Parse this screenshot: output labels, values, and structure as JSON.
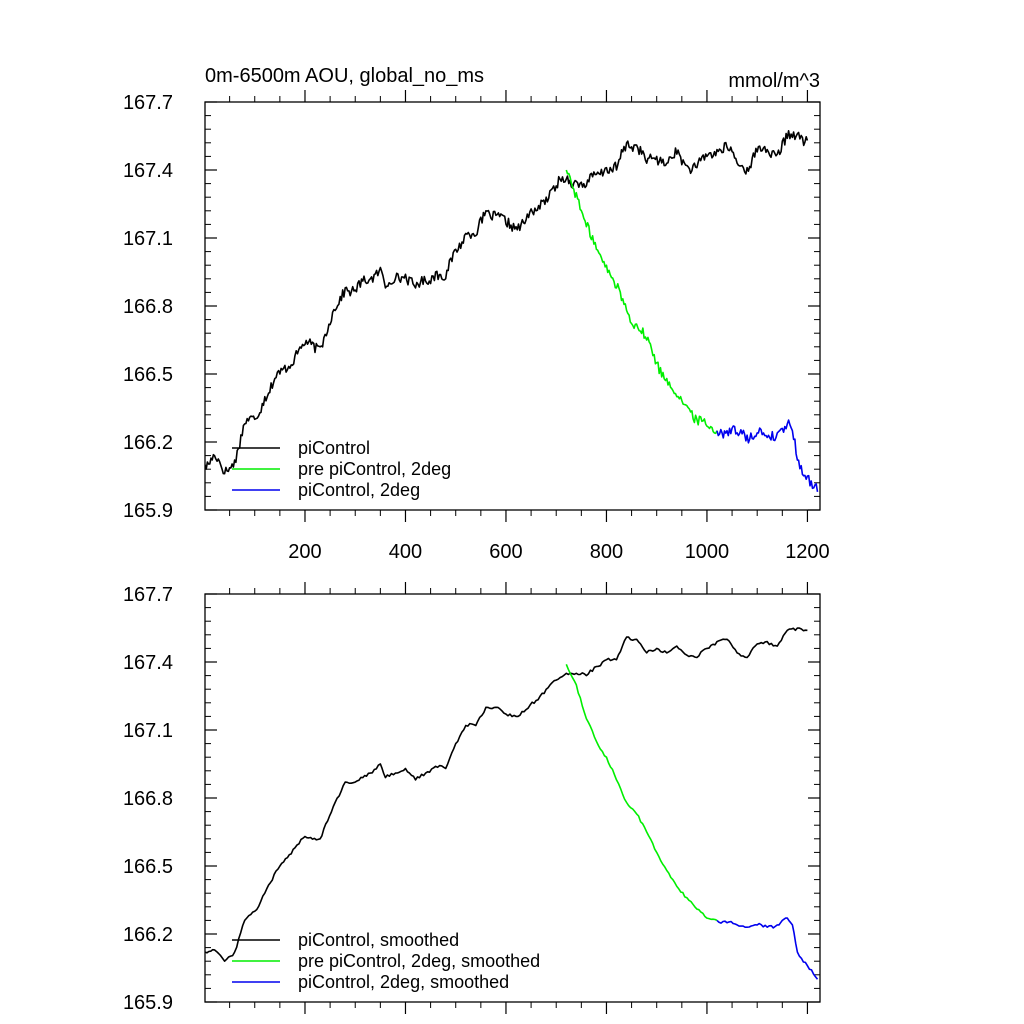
{
  "chart_data": [
    {
      "type": "line",
      "title": "0m-6500m AOU, global_no_ms",
      "units": "mmol/m^3",
      "xlim": [
        1,
        1225
      ],
      "ylim": [
        165.9,
        167.7
      ],
      "xticks": [
        200,
        400,
        600,
        800,
        1000,
        1200
      ],
      "xtick_labels": [
        "200",
        "400",
        "600",
        "800",
        "1000",
        "1200"
      ],
      "yticks": [
        165.9,
        166.2,
        166.5,
        166.8,
        167.1,
        167.4,
        167.7
      ],
      "ytick_labels": [
        "165.9",
        "166.2",
        "166.5",
        "166.8",
        "167.1",
        "167.4",
        "167.7"
      ],
      "legend_position": "bottom-left",
      "series": [
        {
          "name": "piControl",
          "color": "#000000",
          "style": "noisy",
          "x": [
            1,
            20,
            40,
            60,
            80,
            100,
            120,
            150,
            180,
            200,
            230,
            260,
            280,
            300,
            330,
            350,
            360,
            380,
            400,
            420,
            440,
            460,
            480,
            500,
            520,
            540,
            560,
            580,
            600,
            620,
            640,
            660,
            680,
            700,
            720,
            740,
            760,
            780,
            800,
            820,
            840,
            860,
            880,
            900,
            920,
            940,
            960,
            980,
            1000,
            1020,
            1040,
            1060,
            1080,
            1100,
            1120,
            1140,
            1160,
            1180,
            1200
          ],
          "y": [
            166.1,
            166.14,
            166.06,
            166.12,
            166.28,
            166.3,
            166.4,
            166.5,
            166.58,
            166.63,
            166.62,
            166.78,
            166.88,
            166.87,
            166.92,
            166.97,
            166.88,
            166.92,
            166.94,
            166.88,
            166.91,
            166.95,
            166.92,
            167.05,
            167.12,
            167.11,
            167.22,
            167.2,
            167.16,
            167.15,
            167.18,
            167.22,
            167.28,
            167.33,
            167.36,
            167.35,
            167.33,
            167.38,
            167.41,
            167.4,
            167.52,
            167.51,
            167.43,
            167.46,
            167.43,
            167.47,
            167.42,
            167.41,
            167.46,
            167.49,
            167.5,
            167.43,
            167.41,
            167.48,
            167.49,
            167.47,
            167.54,
            167.56,
            167.53
          ]
        },
        {
          "name": "pre piControl, 2deg",
          "color": "#00ee00",
          "style": "noisy",
          "x": [
            720,
            740,
            760,
            780,
            800,
            820,
            840,
            860,
            880,
            900,
            920,
            940,
            960,
            980,
            1000,
            1020
          ],
          "y": [
            167.4,
            167.3,
            167.15,
            167.05,
            166.98,
            166.88,
            166.78,
            166.72,
            166.65,
            166.55,
            166.48,
            166.4,
            166.36,
            166.3,
            166.27,
            166.25
          ]
        },
        {
          "name": "piControl, 2deg",
          "color": "#0000ee",
          "style": "noisy",
          "x": [
            1020,
            1040,
            1060,
            1080,
            1100,
            1120,
            1140,
            1150,
            1160,
            1170,
            1180,
            1200,
            1220
          ],
          "y": [
            166.25,
            166.25,
            166.24,
            166.23,
            166.24,
            166.22,
            166.24,
            166.26,
            166.28,
            166.25,
            166.12,
            166.05,
            165.98
          ]
        }
      ]
    },
    {
      "type": "line",
      "title": "",
      "units": "",
      "xlim": [
        1,
        1225
      ],
      "ylim": [
        165.9,
        167.7
      ],
      "xticks": [
        200,
        400,
        600,
        800,
        1000,
        1200
      ],
      "xtick_labels": [],
      "yticks": [
        165.9,
        166.2,
        166.5,
        166.8,
        167.1,
        167.4,
        167.7
      ],
      "ytick_labels": [
        "165.9",
        "166.2",
        "166.5",
        "166.8",
        "167.1",
        "167.4",
        "167.7"
      ],
      "legend_position": "bottom-left",
      "series": [
        {
          "name": "piControl, smoothed",
          "color": "#000000",
          "style": "smooth",
          "x": [
            1,
            20,
            40,
            60,
            80,
            100,
            120,
            150,
            180,
            200,
            230,
            260,
            280,
            300,
            330,
            350,
            360,
            380,
            400,
            420,
            440,
            460,
            480,
            500,
            520,
            540,
            560,
            580,
            600,
            620,
            640,
            660,
            680,
            700,
            720,
            740,
            760,
            780,
            800,
            820,
            840,
            860,
            880,
            900,
            920,
            940,
            960,
            980,
            1000,
            1020,
            1040,
            1060,
            1080,
            1100,
            1120,
            1140,
            1160,
            1180,
            1200
          ],
          "y": [
            166.12,
            166.13,
            166.08,
            166.12,
            166.26,
            166.3,
            166.38,
            166.5,
            166.58,
            166.63,
            166.62,
            166.78,
            166.87,
            166.87,
            166.91,
            166.95,
            166.89,
            166.91,
            166.93,
            166.88,
            166.91,
            166.94,
            166.93,
            167.04,
            167.12,
            167.12,
            167.2,
            167.2,
            167.17,
            167.16,
            167.19,
            167.23,
            167.28,
            167.32,
            167.35,
            167.35,
            167.34,
            167.38,
            167.41,
            167.41,
            167.51,
            167.5,
            167.44,
            167.46,
            167.44,
            167.47,
            167.43,
            167.42,
            167.46,
            167.49,
            167.5,
            167.44,
            167.42,
            167.48,
            167.49,
            167.47,
            167.54,
            167.55,
            167.54
          ]
        },
        {
          "name": "pre piControl, 2deg, smoothed",
          "color": "#00ee00",
          "style": "smooth",
          "x": [
            720,
            740,
            760,
            780,
            800,
            820,
            840,
            860,
            880,
            900,
            920,
            940,
            960,
            980,
            1000,
            1020
          ],
          "y": [
            167.39,
            167.3,
            167.15,
            167.05,
            166.98,
            166.88,
            166.78,
            166.73,
            166.65,
            166.56,
            166.48,
            166.41,
            166.36,
            166.31,
            166.27,
            166.26
          ]
        },
        {
          "name": "piControl, 2deg, smoothed",
          "color": "#0000ee",
          "style": "smooth",
          "x": [
            1020,
            1040,
            1060,
            1080,
            1100,
            1120,
            1140,
            1150,
            1160,
            1170,
            1180,
            1200,
            1220
          ],
          "y": [
            166.26,
            166.25,
            166.24,
            166.23,
            166.24,
            166.23,
            166.24,
            166.26,
            166.27,
            166.24,
            166.12,
            166.06,
            166.0
          ]
        }
      ]
    }
  ]
}
